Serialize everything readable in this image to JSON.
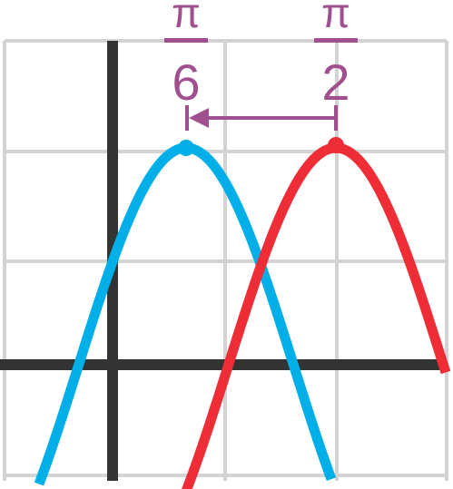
{
  "labels": [
    {
      "numerator": "π",
      "denominator": "6"
    },
    {
      "numerator": "π",
      "denominator": "2"
    }
  ]
}
